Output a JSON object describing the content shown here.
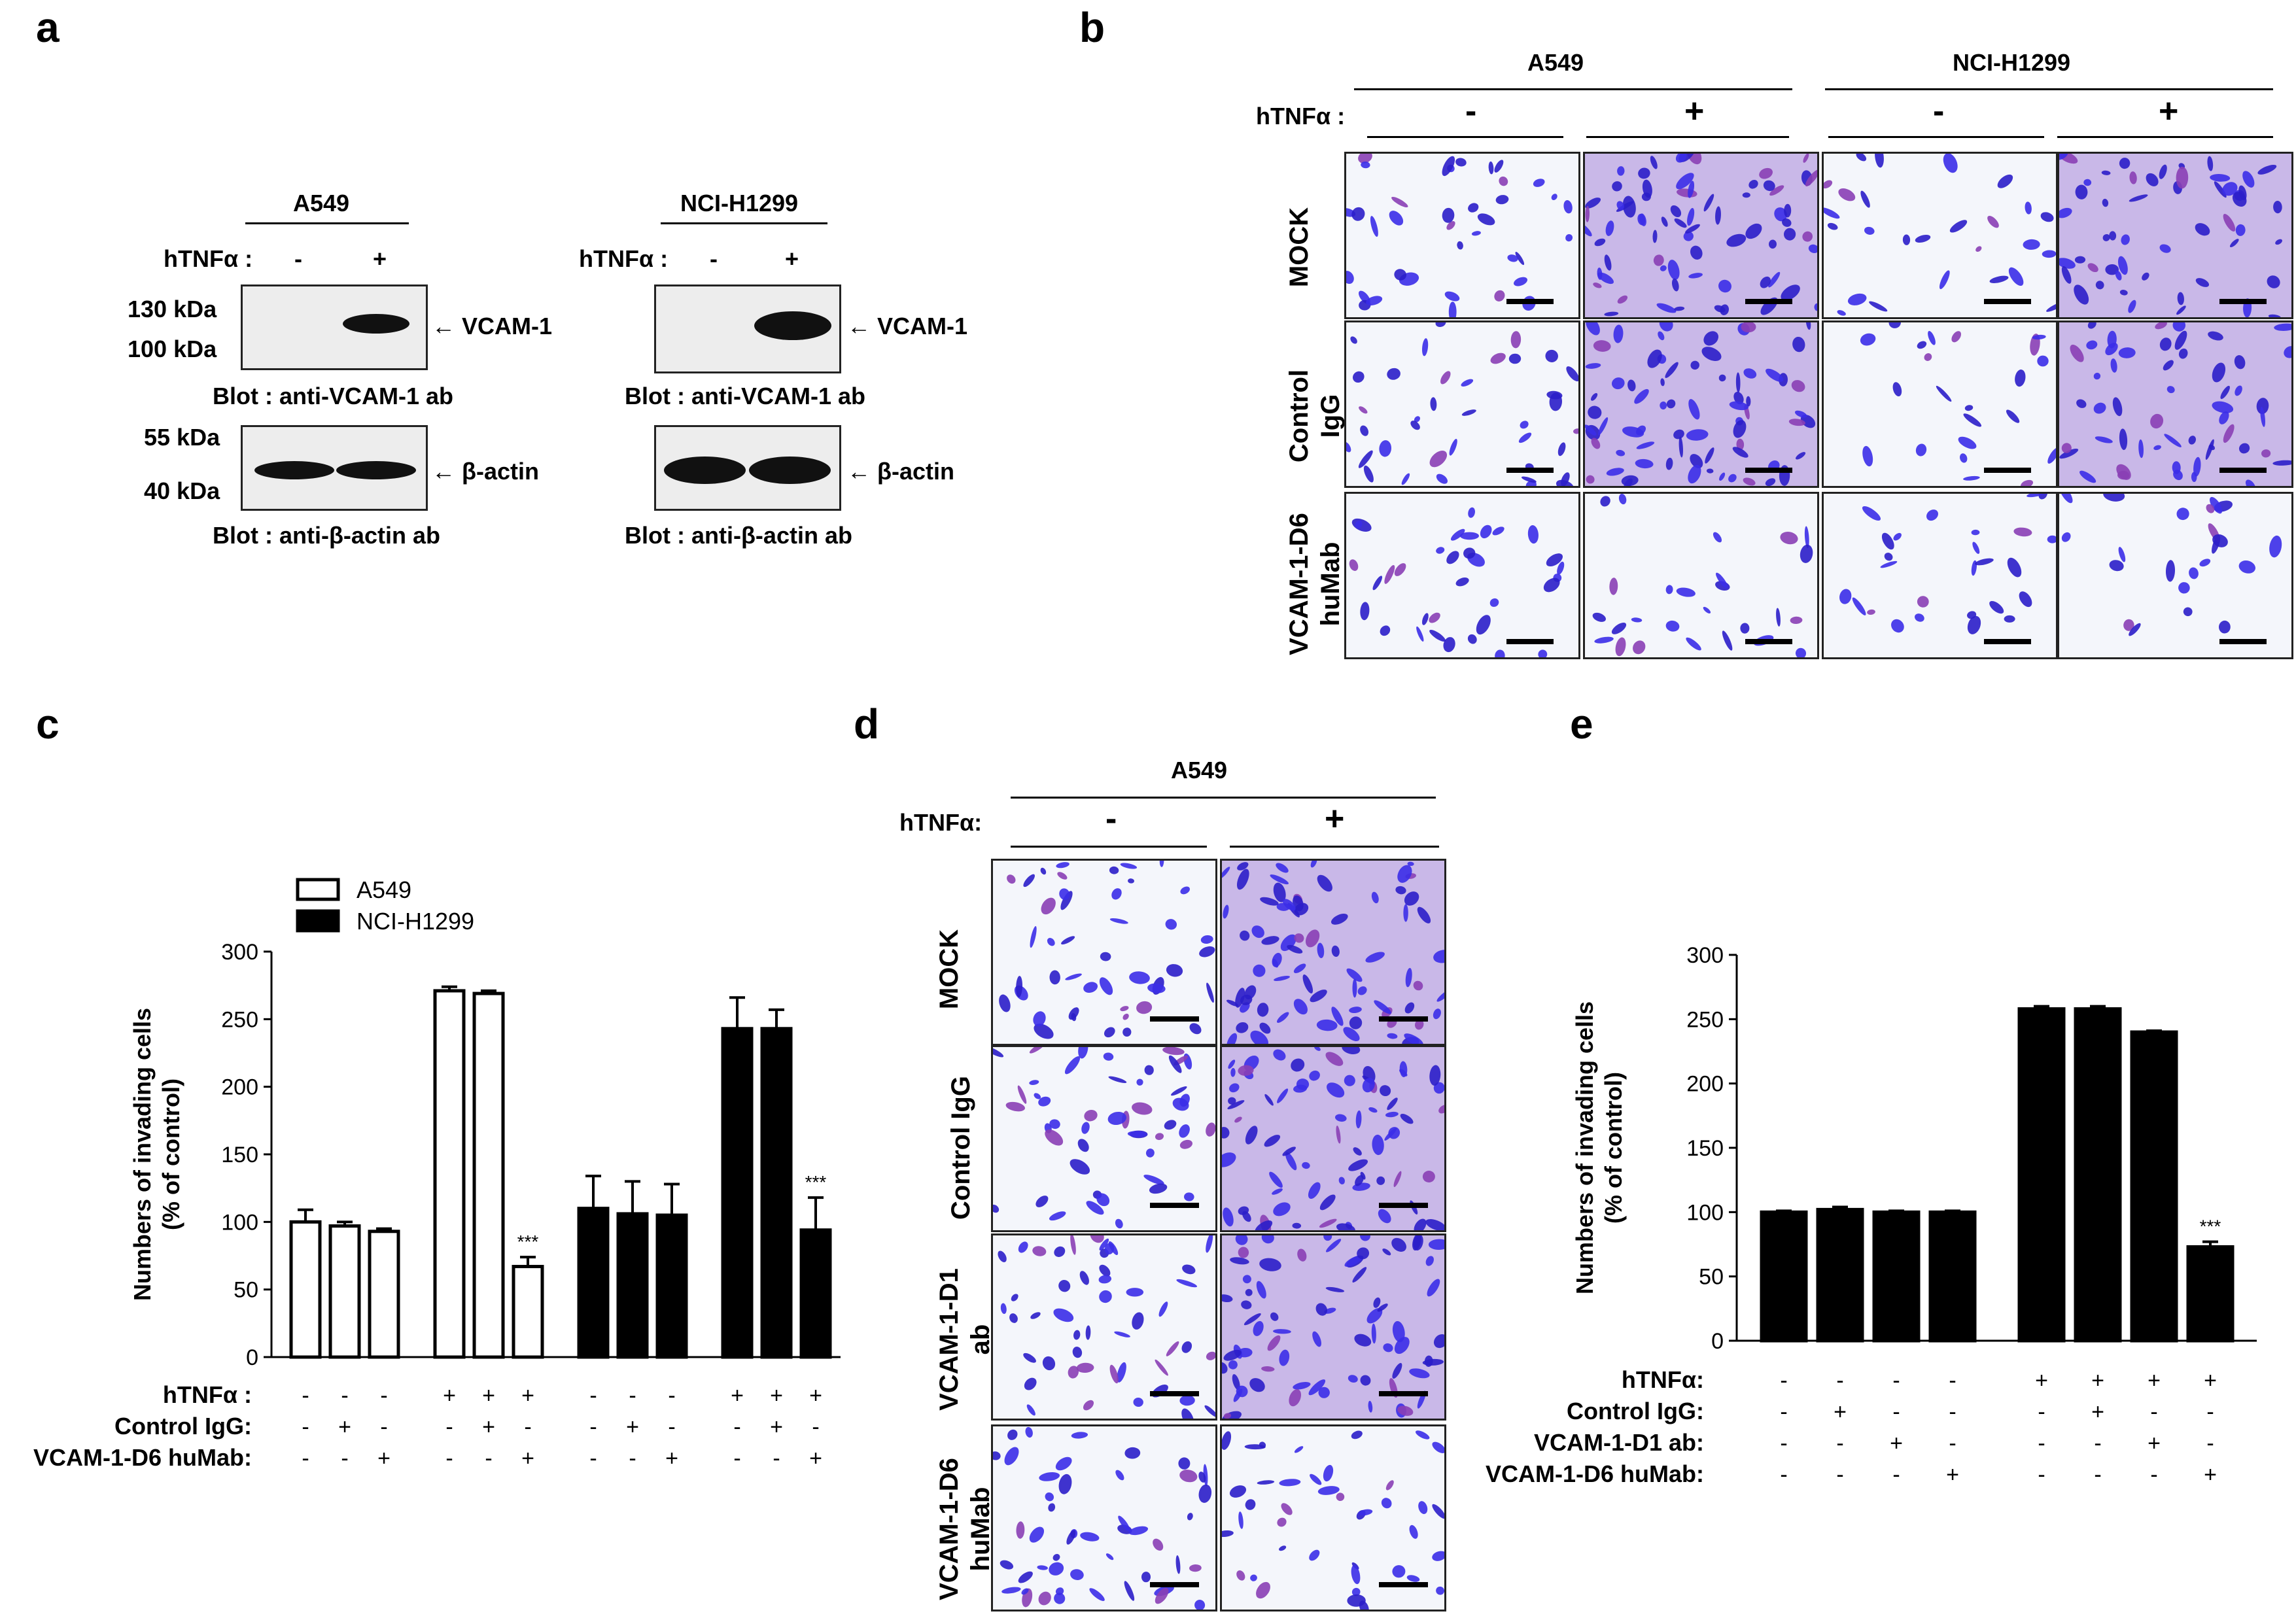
{
  "panel_a": {
    "letter": "a",
    "blots": [
      {
        "cell_line": "A549",
        "treatment_label": "hTNFα :",
        "neg": "-",
        "pos": "+",
        "mw_top": [
          "130 kDa",
          "100 kDa"
        ],
        "mw_bottom": [
          "55 kDa",
          "40 kDa"
        ],
        "band_top": "VCAM-1",
        "band_bottom": "β-actin",
        "blot_top": "Blot : anti-VCAM-1 ab",
        "blot_bottom": "Blot : anti-β-actin ab"
      },
      {
        "cell_line": "NCI-H1299",
        "treatment_label": "hTNFα :",
        "neg": "-",
        "pos": "+",
        "band_top": "VCAM-1",
        "band_bottom": "β-actin",
        "blot_top": "Blot : anti-VCAM-1 ab",
        "blot_bottom": "Blot : anti-β-actin ab"
      }
    ]
  },
  "panel_b": {
    "letter": "b",
    "cell_lines": [
      "A549",
      "NCI-H1299"
    ],
    "treatment_label": "hTNFα :",
    "signs": [
      "-",
      "+",
      "-",
      "+"
    ],
    "rows": [
      "MOCK",
      "Control\nIgG",
      "VCAM-1-D6\nhuMab"
    ]
  },
  "panel_d": {
    "letter": "d",
    "cell_line": "A549",
    "treatment_label": "hTNFα:",
    "signs": [
      "-",
      "+"
    ],
    "rows": [
      "MOCK",
      "Control IgG",
      "VCAM-1-D1\nab",
      "VCAM-1-D6\nhuMab"
    ]
  },
  "chart_data": [
    {
      "panel": "c",
      "type": "bar",
      "ylabel": "Numbers of invading cells\n(% of control)",
      "ylim": [
        0,
        300
      ],
      "yticks": [
        0,
        50,
        100,
        150,
        200,
        250,
        300
      ],
      "legend": [
        {
          "name": "A549",
          "fill": "#ffffff"
        },
        {
          "name": "NCI-H1299",
          "fill": "#000000"
        }
      ],
      "legend_position": "top-left",
      "series": [
        {
          "name": "A549",
          "groups": [
            [
              100,
              97,
              93
            ],
            [
              271,
              269,
              67
            ]
          ],
          "errors": [
            [
              9,
              3,
              2
            ],
            [
              3,
              2,
              7
            ]
          ]
        },
        {
          "name": "NCI-H1299",
          "groups": [
            [
              110,
              106,
              105
            ],
            [
              243,
              243,
              94
            ]
          ],
          "errors": [
            [
              24,
              24,
              23
            ],
            [
              23,
              14,
              24
            ]
          ]
        }
      ],
      "bar_order": [
        "A549 -",
        "A549 +",
        "NCI-H1299 -",
        "NCI-H1299 +"
      ],
      "significance": [
        {
          "bar": 5,
          "label": "***"
        },
        {
          "bar": 11,
          "label": "***"
        }
      ],
      "condition_rows": [
        {
          "label": "hTNFα :",
          "values": [
            "-",
            "-",
            "-",
            "+",
            "+",
            "+",
            "-",
            "-",
            "-",
            "+",
            "+",
            "+"
          ]
        },
        {
          "label": "Control IgG:",
          "values": [
            "-",
            "+",
            "-",
            "-",
            "+",
            "-",
            "-",
            "+",
            "-",
            "-",
            "+",
            "-"
          ]
        },
        {
          "label": "VCAM-1-D6 huMab:",
          "values": [
            "-",
            "-",
            "+",
            "-",
            "-",
            "+",
            "-",
            "-",
            "+",
            "-",
            "-",
            "+"
          ]
        }
      ]
    },
    {
      "panel": "e",
      "type": "bar",
      "ylabel": "Numbers of invading cells\n(% of control)",
      "ylim": [
        0,
        300
      ],
      "yticks": [
        0,
        50,
        100,
        150,
        200,
        250,
        300
      ],
      "values": [
        100,
        102,
        100,
        100,
        258,
        258,
        240,
        73
      ],
      "errors": [
        1,
        2,
        1,
        1,
        2,
        2,
        1,
        4
      ],
      "significance": [
        {
          "bar": 7,
          "label": "***"
        }
      ],
      "condition_rows": [
        {
          "label": "hTNFα:",
          "values": [
            "-",
            "-",
            "-",
            "-",
            "+",
            "+",
            "+",
            "+"
          ]
        },
        {
          "label": "Control IgG:",
          "values": [
            "-",
            "+",
            "-",
            "-",
            "-",
            "+",
            "-",
            "-"
          ]
        },
        {
          "label": "VCAM-1-D1 ab:",
          "values": [
            "-",
            "-",
            "+",
            "-",
            "-",
            "-",
            "+",
            "-"
          ]
        },
        {
          "label": "VCAM-1-D6 huMab:",
          "values": [
            "-",
            "-",
            "-",
            "+",
            "-",
            "-",
            "-",
            "+"
          ]
        }
      ]
    }
  ],
  "panel_c_letter": "c",
  "panel_e_letter": "e"
}
